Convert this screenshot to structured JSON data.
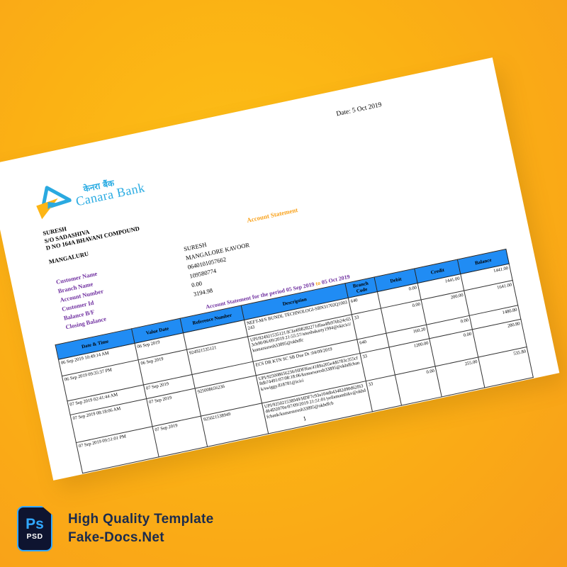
{
  "background": {
    "center_color": "#FDC117",
    "edge_color": "#F89E1A"
  },
  "document": {
    "date_label": "Date: 5 Oct 2019",
    "logo": {
      "hindi_text": "केनरा बैंक",
      "bank_name": "Canara Bank",
      "text_color": "#29ABE2",
      "triangle_blue": "#2AA9E0",
      "triangle_yellow": "#FDB515"
    },
    "address": [
      "SURESH",
      "S/O SADASHIVA",
      "D NO 164A BHAVANI COMPOUND"
    ],
    "city": "MANGALURU",
    "statement_title": "Account Statement",
    "fields": [
      {
        "label": "Customer Name",
        "value": "SURESH"
      },
      {
        "label": "Branch Name",
        "value": "MANGALORE KAVOOR"
      },
      {
        "label": "Account Number",
        "value": "0640101057662"
      },
      {
        "label": "Customer Id",
        "value": "109580774"
      },
      {
        "label": "Balance B/F",
        "value": "0.00"
      },
      {
        "label": "Closing Balance",
        "value": "3194.98"
      }
    ],
    "period": {
      "prefix": "Account Statement for the period",
      "from": "05 Sep 2019",
      "to_word": "to",
      "to": "05 Oct 2019"
    },
    "table": {
      "header_bg": "#208CF4",
      "headers": [
        "Date & Time",
        "Value Date",
        "Reference Number",
        "Description",
        "Branch Code",
        "Debit",
        "Credit",
        "Balance"
      ],
      "rows": [
        [
          "06 Sep 2019 10:49:14 AM",
          "06 Sep 2019",
          "",
          "NEFT-M/S BUNDL TECHNOLOGI-SBN31702Q1003243",
          "640",
          "0.00",
          "1441.00",
          "1441.00"
        ],
        [
          "06 Sep 2019 09:35:37 PM",
          "06 Sep 2019",
          "924921535121",
          "UPI/924921535121/ICIa4f08282271dfaa4fb976b24c653cb90/06/09/2019 21:55:57/anushakarty1994@okicici/kumarsuresh33895@okhdfc",
          "33",
          "0.00",
          "200.00",
          "1641.00"
        ],
        [
          "07 Sep 2019 02:41:44 AM",
          "07 Sep 2019",
          "",
          "ECS DR KTN SC SB Due Dt :04/09/2019",
          "640",
          "160.20",
          "0.00",
          "1480.80"
        ],
        [
          "07 Sep 2019 08:18:06 AM",
          "07 Sep 2019",
          "925008656236",
          "UPI/925008656236/HDFf6ac4189a205e4d6783c355cf8db74491/07/08:18:06/kumarsuresh33895@okhdfcbank/swiggy.818781@icici",
          "33",
          "1200.00",
          "0.00",
          "280.80"
        ],
        [
          "07 Sep 2019 09:51:01 PM",
          "07 Sep 2019",
          "925021538949",
          "UPI/925021538949/HDF7c93a104db43482d90d62f63d64D2070e/07/09/2019 21:51:01/yellamanthikv@okhdfcbank/kumarsuresh33895@okhdfcb",
          "33",
          "0.00",
          "255.00",
          "535.80"
        ]
      ]
    },
    "page_number": "1"
  },
  "footer": {
    "ps_label": "Ps",
    "psd_label": "PSD",
    "title": "High Quality Template",
    "site": "Fake-Docs.Net",
    "text_color": "#1B2B4E",
    "badge_blue": "#31A8FF"
  }
}
